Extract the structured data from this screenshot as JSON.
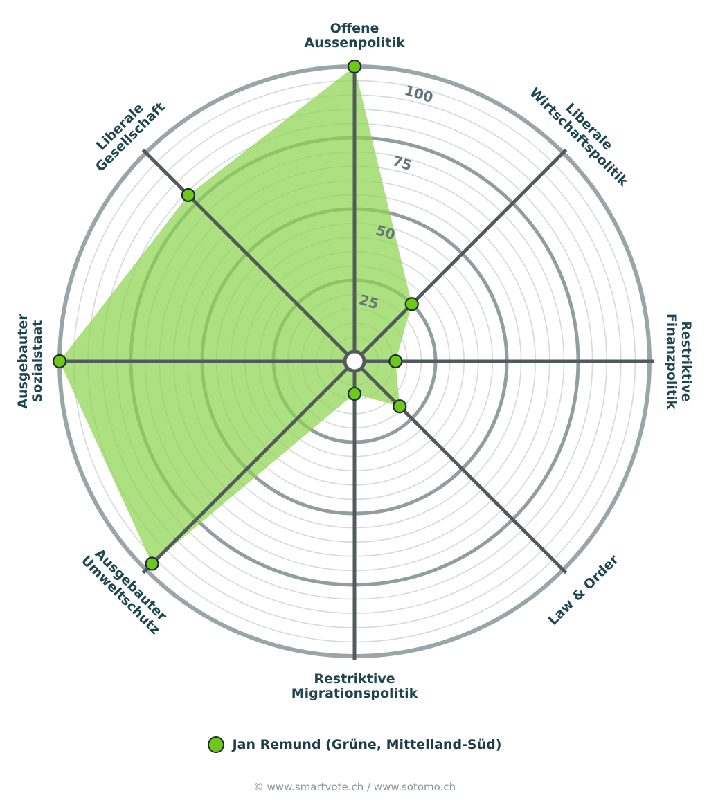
{
  "chart_data": {
    "type": "radar",
    "axes": [
      "Offene Aussenpolitik",
      "Liberale Wirtschaftspolitik",
      "Restriktive Finanzpolitik",
      "Law & Order",
      "Restriktive Migrationspolitik",
      "Ausgebauter Umweltschutz",
      "Ausgebauter Sozialstaat",
      "Liberale Gesellschaft"
    ],
    "axis_label_lines": [
      [
        "Offene",
        "Aussenpolitik"
      ],
      [
        "Liberale",
        "Wirtschaftspolitik"
      ],
      [
        "Restriktive",
        "Finanzpolitik"
      ],
      [
        "Law & Order"
      ],
      [
        "Restriktive",
        "Migrationspolitik"
      ],
      [
        "Ausgebauter",
        "Umweltschutz"
      ],
      [
        "Ausgebauter",
        "Sozialstaat"
      ],
      [
        "Liberale",
        "Gesellschaft"
      ]
    ],
    "series": [
      {
        "name": "Jan Remund (Grüne, Mittelland-Süd)",
        "values": [
          100,
          25,
          11,
          19,
          8,
          97,
          100,
          79
        ]
      }
    ],
    "range": [
      0,
      100
    ],
    "tick_values": [
      25,
      50,
      75,
      100
    ],
    "tick_labels": [
      "25",
      "50",
      "75",
      "100"
    ],
    "minor_rings_step": 5,
    "colors": {
      "fill": "#8ed450",
      "marker": "#6cc81a",
      "marker_stroke": "#1e2a2e",
      "spoke": "#525a5e",
      "major_ring": "#929da2",
      "minor_ring": "#d4d9db",
      "outer_ring": "#9aa5aa"
    }
  },
  "legend": {
    "label": "Jan Remund (Grüne, Mittelland-Süd)"
  },
  "credit": "© www.smartvote.ch / www.sotomo.ch"
}
